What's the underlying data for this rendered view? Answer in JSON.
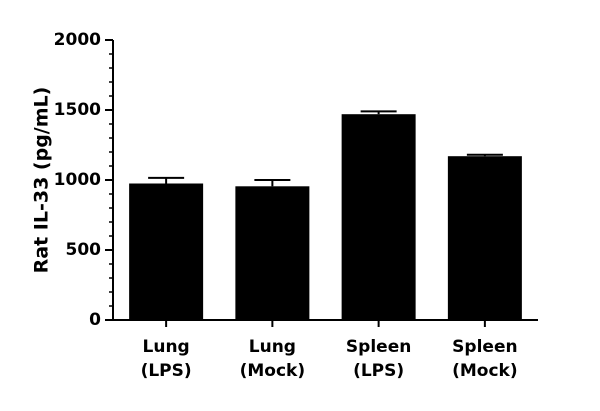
{
  "chart_data": {
    "type": "bar",
    "y_label": "Rat IL-33 (pg/mL)",
    "categories": [
      [
        "Lung",
        "(LPS)"
      ],
      [
        "Lung",
        "(Mock)"
      ],
      [
        "Spleen",
        "(LPS)"
      ],
      [
        "Spleen",
        "(Mock)"
      ]
    ],
    "values": [
      975,
      955,
      1470,
      1170
    ],
    "errors": [
      40,
      45,
      20,
      10
    ],
    "color": "#000000",
    "ylim": [
      0,
      2000
    ],
    "yticks": [
      0,
      500,
      1000,
      1500,
      2000
    ]
  }
}
